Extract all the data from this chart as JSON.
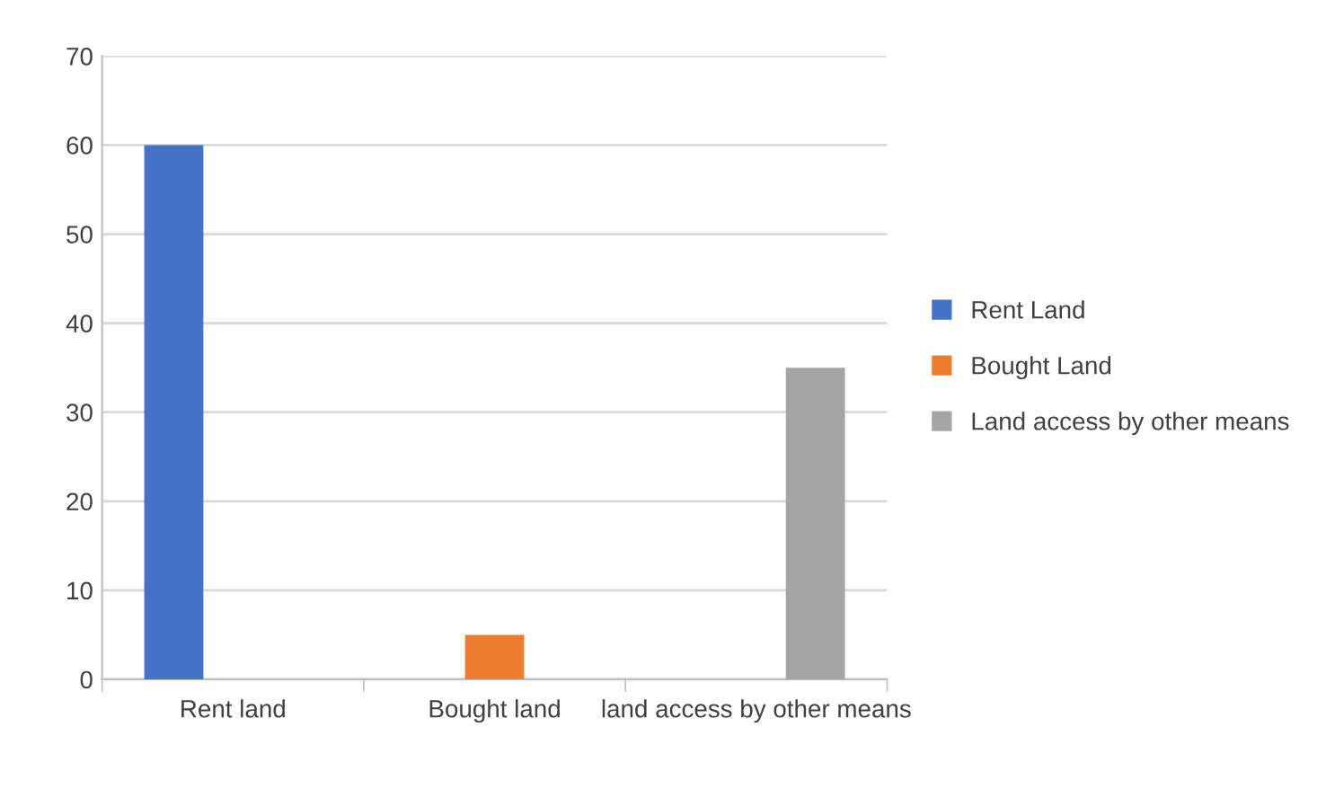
{
  "chart_data": {
    "type": "bar",
    "categories": [
      "Rent land",
      "Bought land",
      "land access by other means"
    ],
    "series": [
      {
        "name": "Rent Land",
        "color": "#4472c4",
        "values": [
          60,
          null,
          null
        ]
      },
      {
        "name": "Bought Land",
        "color": "#ed7d31",
        "values": [
          null,
          5,
          null
        ]
      },
      {
        "name": "Land access by other means",
        "color": "#a5a5a5",
        "values": [
          null,
          null,
          35
        ]
      }
    ],
    "ylim": [
      0,
      70
    ],
    "yticks": [
      0,
      10,
      20,
      30,
      40,
      50,
      60,
      70
    ],
    "grid": "y",
    "legend": "right"
  }
}
